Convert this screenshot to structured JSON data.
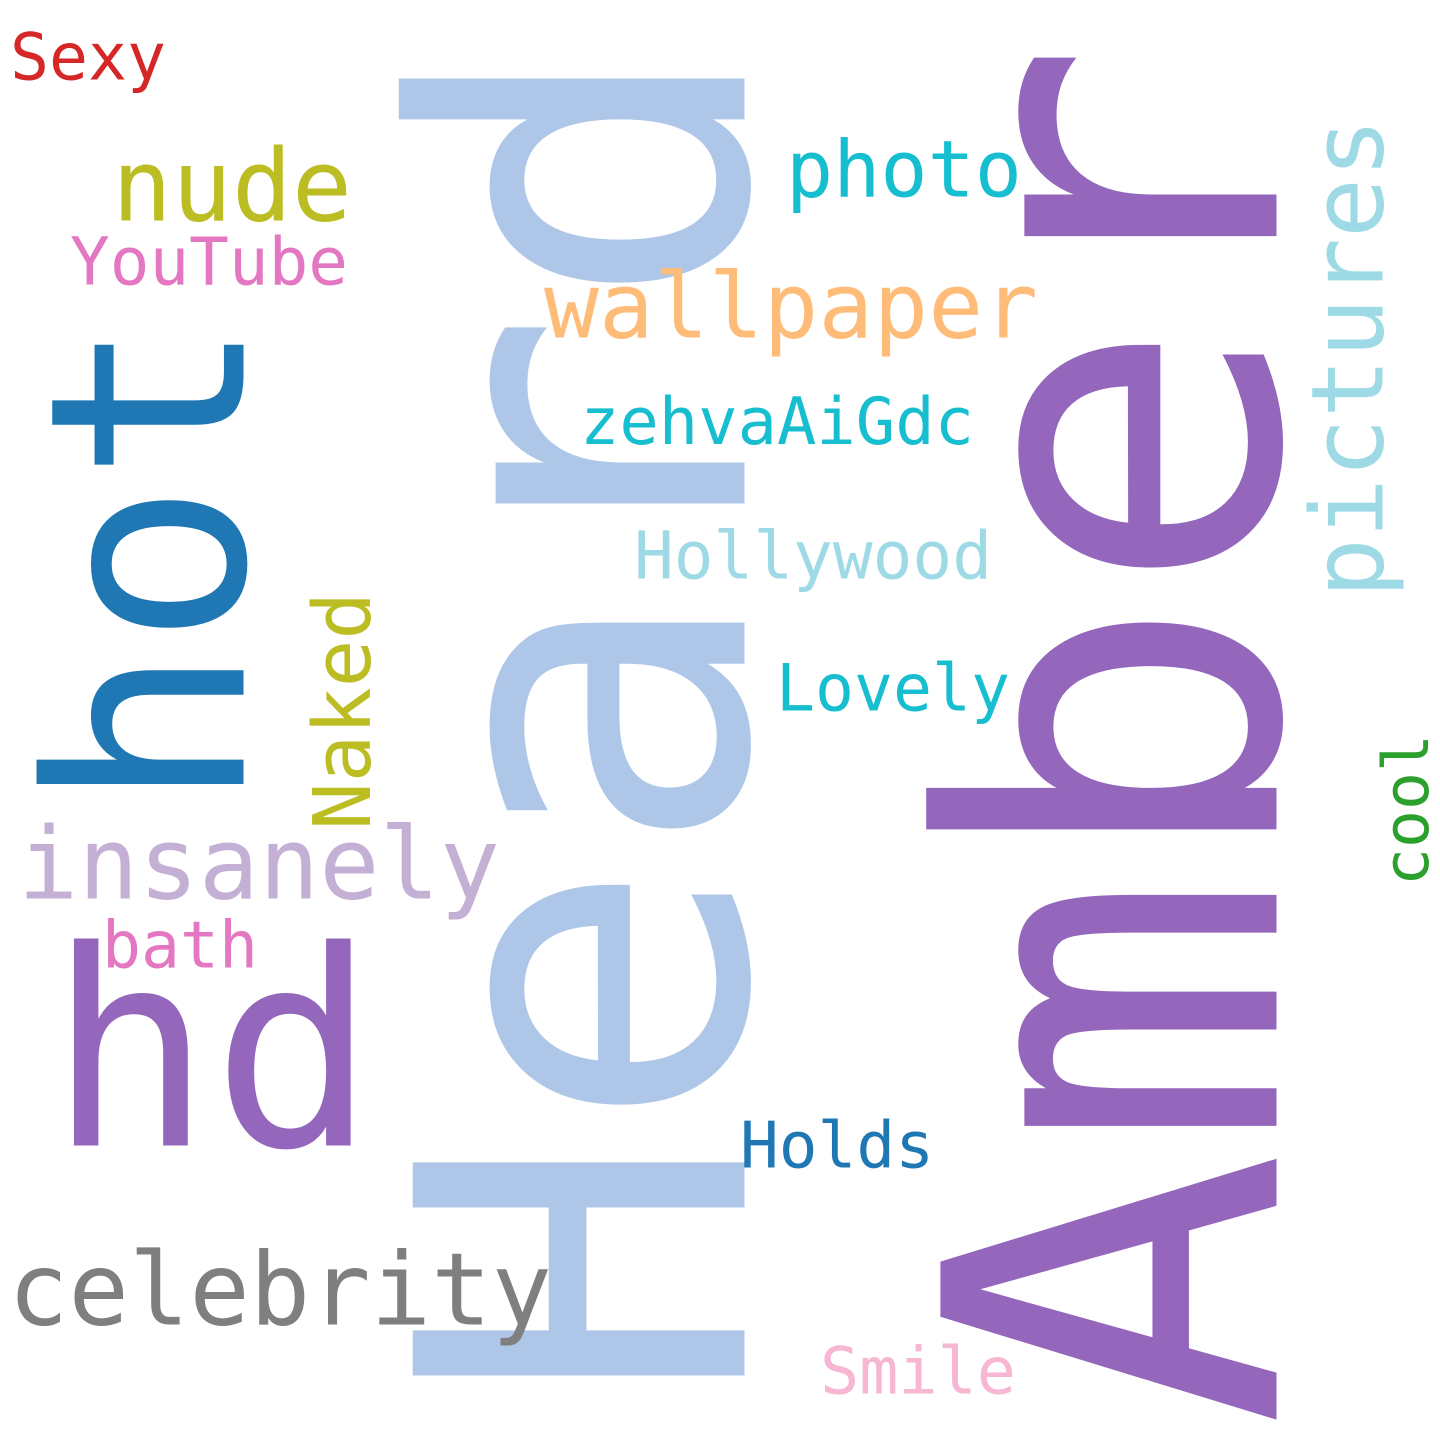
{
  "words": [
    {
      "id": "amber",
      "text": "Amber",
      "color": "#9467bd"
    },
    {
      "id": "heard",
      "text": "Heard",
      "color": "#aec7e8"
    },
    {
      "id": "hot",
      "text": "hot",
      "color": "#1f77b4"
    },
    {
      "id": "hd",
      "text": "hd",
      "color": "#9467bd"
    },
    {
      "id": "insanely",
      "text": "insanely",
      "color": "#c5b0d5"
    },
    {
      "id": "celebrity",
      "text": "celebrity",
      "color": "#7f7f7f"
    },
    {
      "id": "nude",
      "text": "nude",
      "color": "#bcbd22"
    },
    {
      "id": "wallpaper",
      "text": "wallpaper",
      "color": "#ffbb78"
    },
    {
      "id": "photo",
      "text": "photo",
      "color": "#17becf"
    },
    {
      "id": "pictures",
      "text": "pictures",
      "color": "#9edae5"
    },
    {
      "id": "youtube",
      "text": "YouTube",
      "color": "#e377c2"
    },
    {
      "id": "sexy",
      "text": "Sexy",
      "color": "#d62728"
    },
    {
      "id": "zehva",
      "text": "zehvaAiGdc",
      "color": "#17becf"
    },
    {
      "id": "hollywood",
      "text": "Hollywood",
      "color": "#9edae5"
    },
    {
      "id": "naked",
      "text": "Naked",
      "color": "#bcbd22"
    },
    {
      "id": "lovely",
      "text": "Lovely",
      "color": "#17becf"
    },
    {
      "id": "bath",
      "text": "bath",
      "color": "#e377c2"
    },
    {
      "id": "holds",
      "text": "Holds",
      "color": "#1f77b4"
    },
    {
      "id": "cool",
      "text": "cool",
      "color": "#2ca02c"
    },
    {
      "id": "smile",
      "text": "Smile",
      "color": "#f7b6d2"
    }
  ]
}
